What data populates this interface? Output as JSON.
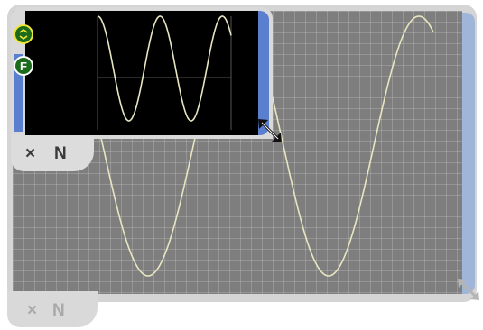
{
  "colors": {
    "trace": "#e8e6c0",
    "foreground_accent": "#5b7fcf",
    "background_accent": "#9fb6d8",
    "plot_background": "#7e7e7e",
    "foreground_plot_background": "#000000",
    "scale_button_ring": "#f0e53b",
    "button_fill": "#1c6b1c"
  },
  "background_window": {
    "tab": {
      "close_label": "×",
      "n_label": "N"
    }
  },
  "foreground_window": {
    "tab": {
      "close_label": "×",
      "n_label": "N"
    },
    "buttons": {
      "scale_icon": "scale-arrows-icon",
      "freeze_label": "F"
    }
  },
  "icons": {
    "resize": "diagonal-resize-arrows-icon",
    "close": "close-icon"
  }
}
